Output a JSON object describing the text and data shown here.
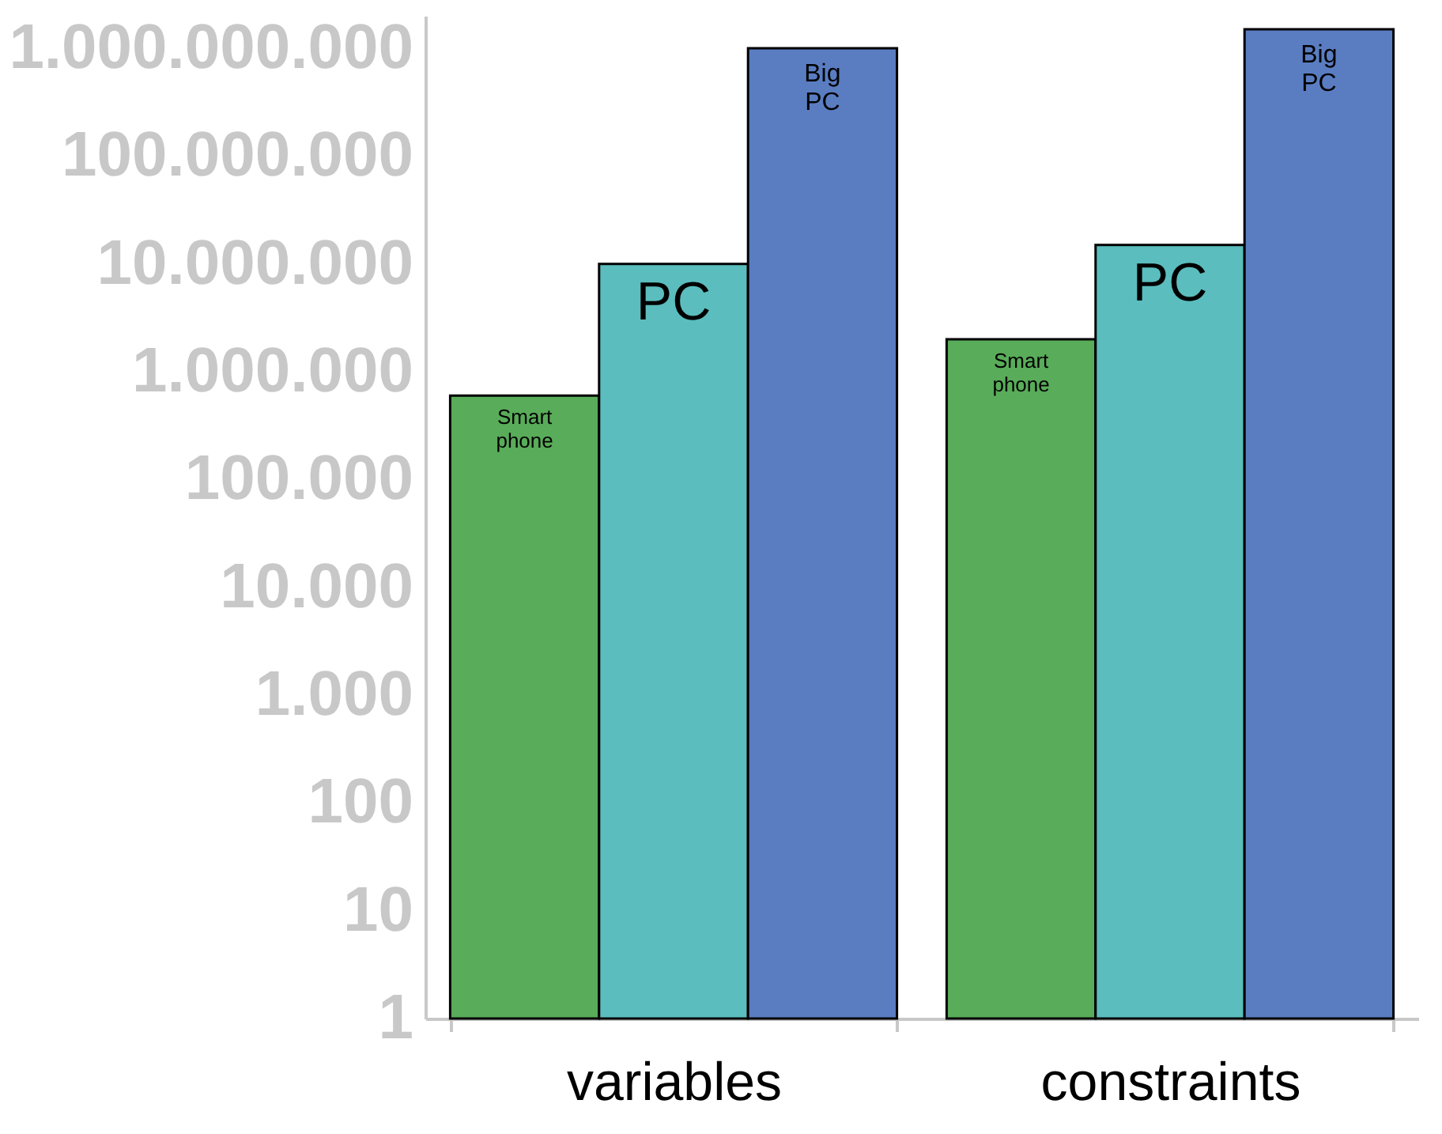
{
  "chart_data": {
    "type": "bar",
    "categories": [
      "variables",
      "constraints"
    ],
    "series": [
      {
        "name": "Smart phone",
        "color": "#59ac59",
        "values": [
          600000,
          2000000
        ]
      },
      {
        "name": "PC",
        "color": "#5bbdbd",
        "values": [
          10000000,
          15000000
        ]
      },
      {
        "name": "Big PC",
        "color": "#5a7dc2",
        "values": [
          1000000000,
          1500000000
        ]
      }
    ],
    "log": "y",
    "ylim": [
      1,
      2000000000
    ],
    "yticks": [
      1,
      10,
      100,
      {
        "value": 1000,
        "label": "1.000"
      },
      {
        "value": 10000,
        "label": "10.000"
      },
      {
        "value": 100000,
        "label": "100.000"
      },
      {
        "value": 1000000,
        "label": "1.000.000"
      },
      {
        "value": 10000000,
        "label": "10.000.000"
      },
      {
        "value": 100000000,
        "label": "100.000.000"
      },
      {
        "value": 1000000000,
        "label": "1.000.000.000"
      }
    ],
    "grid": false,
    "legend": false
  }
}
